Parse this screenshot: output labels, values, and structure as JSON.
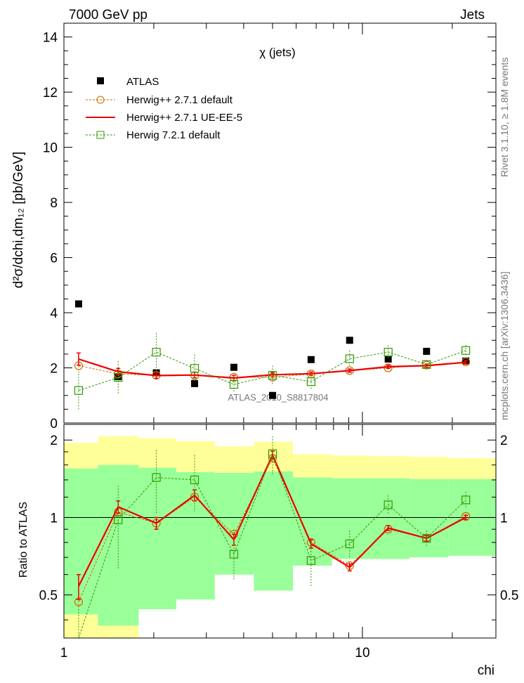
{
  "header": {
    "left": "7000 GeV pp",
    "right": "Jets",
    "plot_title": "χ (jets)",
    "side_top": "Rivet 3.1.10, ≥ 1.8M events",
    "side_bottom": "mcplots.cern.ch [arXiv:1306.3436]",
    "watermark": "ATLAS_2010_S8817804"
  },
  "legend": {
    "entries": [
      {
        "label": "ATLAS",
        "marker": "square-filled",
        "color": "#000000"
      },
      {
        "label": "Herwig++ 2.7.1 default",
        "marker": "circle-open",
        "color": "#cc6600"
      },
      {
        "label": "Herwig++ 2.7.1 UE-EE-5",
        "marker": "line",
        "color": "#ee0000"
      },
      {
        "label": "Herwig 7.2.1 default",
        "marker": "square-open",
        "color": "#339900"
      }
    ]
  },
  "colors": {
    "band_outer": "#ffff99",
    "band_inner": "#99ff99",
    "data": "#000000",
    "herwigpp_default": "#cc6600",
    "herwigpp_ueee5": "#ee0000",
    "herwig7": "#339900"
  },
  "chart_data": [
    {
      "type": "scatter",
      "panel": "main",
      "ylabel": "d²σ/dchi,dm₁₂ [pb/GeV]",
      "ylim": [
        0,
        14.5
      ],
      "yticks": [
        0,
        2,
        4,
        6,
        8,
        10,
        12,
        14
      ],
      "xscale": "log",
      "xlim": [
        1,
        28
      ],
      "x": [
        1.12,
        1.52,
        2.04,
        2.74,
        3.71,
        5.0,
        6.73,
        9.06,
        12.2,
        16.4,
        22.2
      ],
      "series": [
        {
          "name": "ATLAS",
          "values": [
            4.32,
            1.68,
            1.82,
            1.43,
            2.02,
            1.0,
            2.3,
            3.0,
            2.32,
            2.6,
            2.25
          ]
        },
        {
          "name": "Herwig++ 2.7.1 default",
          "values": [
            2.08,
            1.78,
            1.73,
            1.72,
            1.66,
            1.66,
            1.78,
            1.9,
            2.0,
            2.1,
            2.22
          ],
          "errors": [
            0.1,
            0.1,
            0.08,
            0.08,
            0.08,
            0.08,
            0.06,
            0.06,
            0.06,
            0.06,
            0.06
          ]
        },
        {
          "name": "Herwig++ 2.7.1 UE-EE-5",
          "values": [
            2.32,
            1.86,
            1.72,
            1.74,
            1.63,
            1.75,
            1.79,
            1.9,
            2.04,
            2.08,
            2.2
          ],
          "errors": [
            0.22,
            0.12,
            0.1,
            0.1,
            0.1,
            0.08,
            0.06,
            0.06,
            0.06,
            0.06,
            0.06
          ]
        },
        {
          "name": "Herwig 7.2.1 default",
          "values": [
            1.18,
            1.65,
            2.57,
            1.98,
            1.4,
            1.73,
            1.5,
            2.33,
            2.57,
            2.12,
            2.63
          ],
          "errors": [
            0.7,
            0.6,
            0.7,
            0.5,
            0.3,
            0.35,
            0.3,
            0.3,
            0.25,
            0.15,
            0.2
          ]
        }
      ]
    },
    {
      "type": "line",
      "panel": "ratio",
      "ylabel": "Ratio to ATLAS",
      "xlabel": "chi",
      "ylim": [
        0.34,
        2.3
      ],
      "yscale": "log",
      "yticks": [
        0.5,
        1,
        2
      ],
      "xticks": [
        1,
        10
      ],
      "reference": 1,
      "bands": {
        "edges": [
          1,
          1.3,
          1.78,
          2.38,
          3.2,
          4.33,
          5.85,
          7.9,
          10.6,
          14.4,
          19.4,
          28
        ],
        "outer_lo": [
          0.3,
          0.3,
          0.44,
          0.48,
          0.6,
          0.52,
          0.65,
          0.69,
          0.69,
          0.7,
          0.71
        ],
        "outer_hi": [
          1.95,
          2.07,
          2.03,
          1.98,
          1.89,
          1.97,
          1.76,
          1.74,
          1.73,
          1.72,
          1.7
        ],
        "inner_lo": [
          0.42,
          0.38,
          0.44,
          0.48,
          0.6,
          0.52,
          0.65,
          0.69,
          0.69,
          0.7,
          0.71
        ],
        "inner_hi": [
          1.55,
          1.6,
          1.56,
          1.5,
          1.49,
          1.51,
          1.43,
          1.42,
          1.42,
          1.41,
          1.41
        ]
      },
      "x": [
        1.12,
        1.52,
        2.04,
        2.74,
        3.71,
        5.0,
        6.73,
        9.06,
        12.2,
        16.4,
        22.2
      ],
      "series": [
        {
          "name": "Herwig++ 2.7.1 default",
          "values": [
            0.47,
            1.05,
            0.95,
            1.2,
            0.86,
            1.7,
            0.8,
            0.65,
            0.9,
            0.83,
            1.01
          ],
          "errors": [
            0.03,
            0.05,
            0.05,
            0.05,
            0.04,
            0.06,
            0.03,
            0.02,
            0.02,
            0.02,
            0.02
          ]
        },
        {
          "name": "Herwig++ 2.7.1 UE-EE-5",
          "values": [
            0.54,
            1.1,
            0.95,
            1.22,
            0.82,
            1.75,
            0.79,
            0.64,
            0.91,
            0.83,
            1.0
          ],
          "errors": [
            0.06,
            0.06,
            0.05,
            0.06,
            0.04,
            0.06,
            0.03,
            0.02,
            0.02,
            0.02,
            0.02
          ]
        },
        {
          "name": "Herwig 7.2.1 default",
          "values": [
            0.28,
            0.98,
            1.43,
            1.4,
            0.72,
            1.77,
            0.68,
            0.79,
            1.12,
            0.83,
            1.17
          ],
          "errors": [
            0.16,
            0.35,
            0.4,
            0.35,
            0.15,
            0.3,
            0.14,
            0.1,
            0.1,
            0.06,
            0.09
          ]
        }
      ]
    }
  ]
}
